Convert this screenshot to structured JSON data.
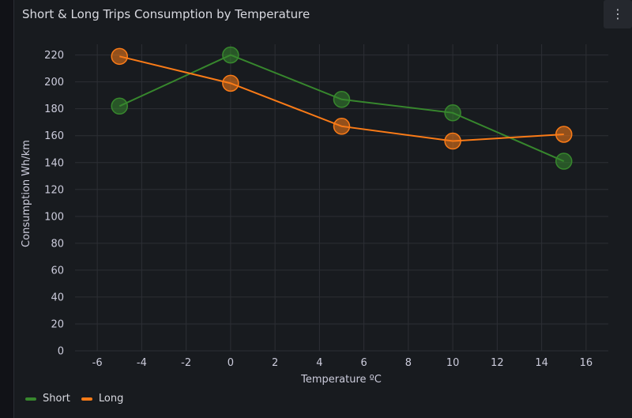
{
  "panel": {
    "title": "Short & Long Trips Consumption by Temperature",
    "menu_icon": "kebab-menu-icon"
  },
  "chart_data": {
    "type": "line",
    "title": "Short & Long Trips Consumption by Temperature",
    "xlabel": "Temperature ºC",
    "ylabel": "Consumption Wh/km",
    "xlim": [
      -7,
      17
    ],
    "ylim": [
      0,
      228
    ],
    "x_ticks": [
      "-6",
      "-4",
      "-2",
      "0",
      "2",
      "4",
      "6",
      "8",
      "10",
      "12",
      "14",
      "16"
    ],
    "y_ticks": [
      "0",
      "20",
      "40",
      "60",
      "80",
      "100",
      "120",
      "140",
      "160",
      "180",
      "200",
      "220"
    ],
    "grid": true,
    "legend_position": "bottom-left",
    "series": [
      {
        "name": "Short",
        "color": "#37872d",
        "points": [
          {
            "x": -5,
            "y": 182
          },
          {
            "x": 0,
            "y": 220
          },
          {
            "x": 5,
            "y": 187
          },
          {
            "x": 10,
            "y": 177
          },
          {
            "x": 15,
            "y": 141
          }
        ]
      },
      {
        "name": "Long",
        "color": "#fa7b17",
        "points": [
          {
            "x": -5,
            "y": 219
          },
          {
            "x": 0,
            "y": 199
          },
          {
            "x": 5,
            "y": 167
          },
          {
            "x": 10,
            "y": 156
          },
          {
            "x": 15,
            "y": 161
          }
        ]
      }
    ]
  },
  "legend": {
    "items": [
      {
        "label": "Short",
        "color": "#37872d"
      },
      {
        "label": "Long",
        "color": "#fa7b17"
      }
    ]
  }
}
